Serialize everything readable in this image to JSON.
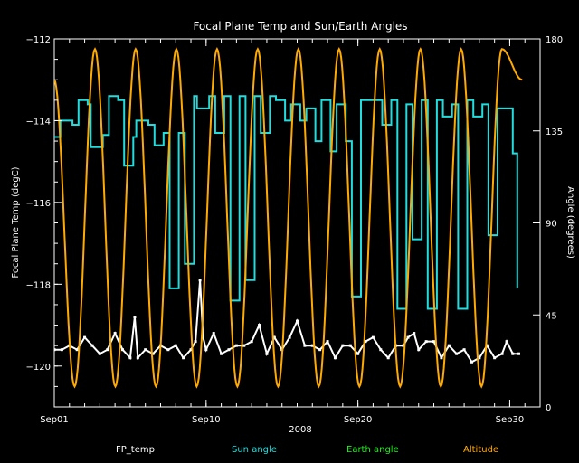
{
  "chart_data": {
    "type": "line",
    "title": "Focal Plane Temp and Sun/Earth Angles",
    "xlabel": "2008",
    "ylabel_left": "Focal Plane Temp (degC)",
    "ylabel_right": "Angle (degrees)",
    "xlim": [
      1,
      33
    ],
    "ylim_left": [
      -121,
      -112
    ],
    "ylim_right": [
      0,
      180
    ],
    "x_ticks": [
      {
        "value": 1,
        "label": "Sep01"
      },
      {
        "value": 11,
        "label": "Sep10"
      },
      {
        "value": 21,
        "label": "Sep20"
      },
      {
        "value": 31,
        "label": "Sep30"
      }
    ],
    "y_ticks_left": [
      {
        "value": -112,
        "label": "−112"
      },
      {
        "value": -114,
        "label": "−114"
      },
      {
        "value": -116,
        "label": "−116"
      },
      {
        "value": -118,
        "label": "−118"
      },
      {
        "value": -120,
        "label": "−120"
      }
    ],
    "y_ticks_right": [
      {
        "value": 0,
        "label": "0"
      },
      {
        "value": 45,
        "label": "45"
      },
      {
        "value": 90,
        "label": "90"
      },
      {
        "value": 135,
        "label": "135"
      },
      {
        "value": 180,
        "label": "180"
      }
    ],
    "grid": false,
    "legend_position": "bottom",
    "series": [
      {
        "name": "FP_temp",
        "axis": "left",
        "color": "#ffffff",
        "style": "points",
        "x": [
          1.0,
          1.5,
          2.0,
          2.5,
          3.0,
          3.5,
          4.0,
          4.5,
          5.0,
          5.5,
          6.0,
          6.3,
          6.5,
          7.0,
          7.5,
          8.0,
          8.5,
          9.0,
          9.5,
          10.0,
          10.3,
          10.6,
          10.8,
          11.0,
          11.5,
          12.0,
          12.5,
          13.0,
          13.5,
          14.0,
          14.5,
          15.0,
          15.5,
          16.0,
          16.5,
          17.0,
          17.5,
          18.0,
          18.5,
          19.0,
          19.5,
          20.0,
          20.5,
          21.0,
          21.5,
          22.0,
          22.5,
          23.0,
          23.5,
          24.0,
          24.3,
          24.7,
          25.0,
          25.5,
          26.0,
          26.5,
          27.0,
          27.5,
          28.0,
          28.5,
          29.0,
          29.5,
          30.0,
          30.5,
          30.8,
          31.2,
          31.6
        ],
        "y": [
          -119.6,
          -119.6,
          -119.5,
          -119.6,
          -119.3,
          -119.5,
          -119.7,
          -119.6,
          -119.2,
          -119.6,
          -119.8,
          -118.8,
          -119.8,
          -119.6,
          -119.7,
          -119.5,
          -119.6,
          -119.5,
          -119.8,
          -119.6,
          -119.4,
          -117.9,
          -119.3,
          -119.6,
          -119.2,
          -119.7,
          -119.6,
          -119.5,
          -119.5,
          -119.4,
          -119.0,
          -119.7,
          -119.3,
          -119.6,
          -119.3,
          -118.9,
          -119.5,
          -119.5,
          -119.6,
          -119.4,
          -119.8,
          -119.5,
          -119.5,
          -119.7,
          -119.4,
          -119.3,
          -119.6,
          -119.8,
          -119.5,
          -119.5,
          -119.3,
          -119.2,
          -119.6,
          -119.4,
          -119.4,
          -119.8,
          -119.5,
          -119.7,
          -119.6,
          -119.9,
          -119.8,
          -119.5,
          -119.8,
          -119.7,
          -119.4,
          -119.7,
          -119.7
        ]
      },
      {
        "name": "Sun angle",
        "axis": "right",
        "color": "#22dddd",
        "style": "step",
        "x": [
          1.0,
          1.4,
          2.2,
          2.6,
          3.2,
          3.4,
          4.2,
          4.6,
          5.2,
          5.6,
          6.2,
          6.4,
          7.2,
          7.6,
          8.2,
          8.6,
          9.2,
          9.6,
          10.2,
          10.4,
          11.2,
          11.6,
          12.2,
          12.6,
          13.2,
          13.6,
          14.2,
          14.6,
          15.2,
          15.6,
          16.2,
          16.6,
          17.2,
          17.6,
          18.2,
          18.6,
          19.2,
          19.6,
          20.2,
          20.6,
          21.2,
          21.6,
          22.2,
          22.6,
          23.2,
          23.6,
          24.2,
          24.6,
          25.2,
          25.6,
          26.2,
          26.6,
          27.2,
          27.6,
          28.2,
          28.6,
          29.2,
          29.6,
          30.2,
          30.8,
          31.2,
          31.5
        ],
        "y": [
          132,
          140,
          138,
          150,
          148,
          127,
          133,
          152,
          150,
          118,
          132,
          140,
          138,
          128,
          134,
          58,
          134,
          70,
          152,
          146,
          152,
          134,
          152,
          52,
          152,
          62,
          152,
          134,
          152,
          150,
          140,
          148,
          140,
          146,
          130,
          150,
          125,
          148,
          130,
          54,
          150,
          150,
          150,
          138,
          150,
          48,
          148,
          82,
          150,
          48,
          150,
          142,
          148,
          48,
          150,
          142,
          148,
          84,
          146,
          146,
          124,
          58
        ]
      },
      {
        "name": "Earth angle",
        "axis": "right",
        "color": "#22ee22",
        "style": "step",
        "x": [],
        "y": []
      },
      {
        "name": "Altitude",
        "axis": "right",
        "color": "#ffaa00",
        "style": "line",
        "period_days": 2.68,
        "x": [
          1.0,
          2.34,
          3.68,
          5.02,
          6.36,
          7.7,
          9.04,
          10.38,
          11.72,
          13.06,
          14.4,
          15.74,
          17.08,
          18.42,
          19.76,
          21.1,
          22.44,
          23.78,
          25.12,
          26.46,
          27.8,
          29.14,
          30.48,
          31.82
        ],
        "y": [
          160,
          10,
          175,
          10,
          175,
          10,
          175,
          10,
          175,
          10,
          175,
          10,
          175,
          10,
          175,
          10,
          175,
          10,
          175,
          10,
          175,
          10,
          175,
          160
        ]
      }
    ]
  }
}
